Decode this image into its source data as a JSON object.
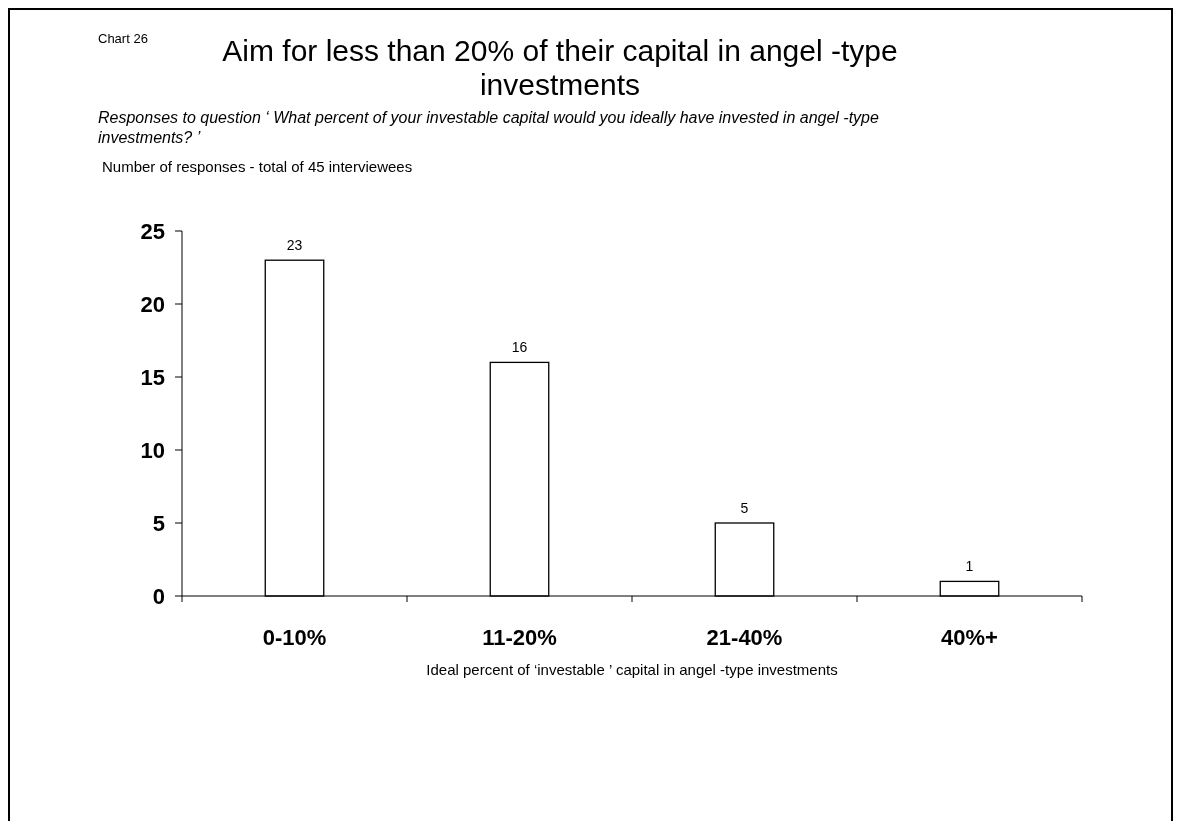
{
  "chart_data": {
    "type": "bar",
    "title": "Aim for less than 20% of their capital in angel -type investments",
    "subtitle": "Responses to question ‘ What percent of your investable capital would you ideally have invested in angel -type investments? ’",
    "ylabel": "Number of responses - total of 45 interviewees",
    "xlabel": "Ideal percent of ‘investable ’ capital in angel -type investments",
    "annotations": [
      "Chart 26"
    ],
    "categories": [
      "0-10%",
      "11-20%",
      "21-40%",
      "40%+"
    ],
    "values": [
      23,
      16,
      5,
      1
    ],
    "color": "#ffffff",
    "data_labels": true,
    "ylim": [
      0,
      25
    ],
    "yticks": [
      0,
      5,
      10,
      15,
      20,
      25
    ],
    "grid": false
  }
}
